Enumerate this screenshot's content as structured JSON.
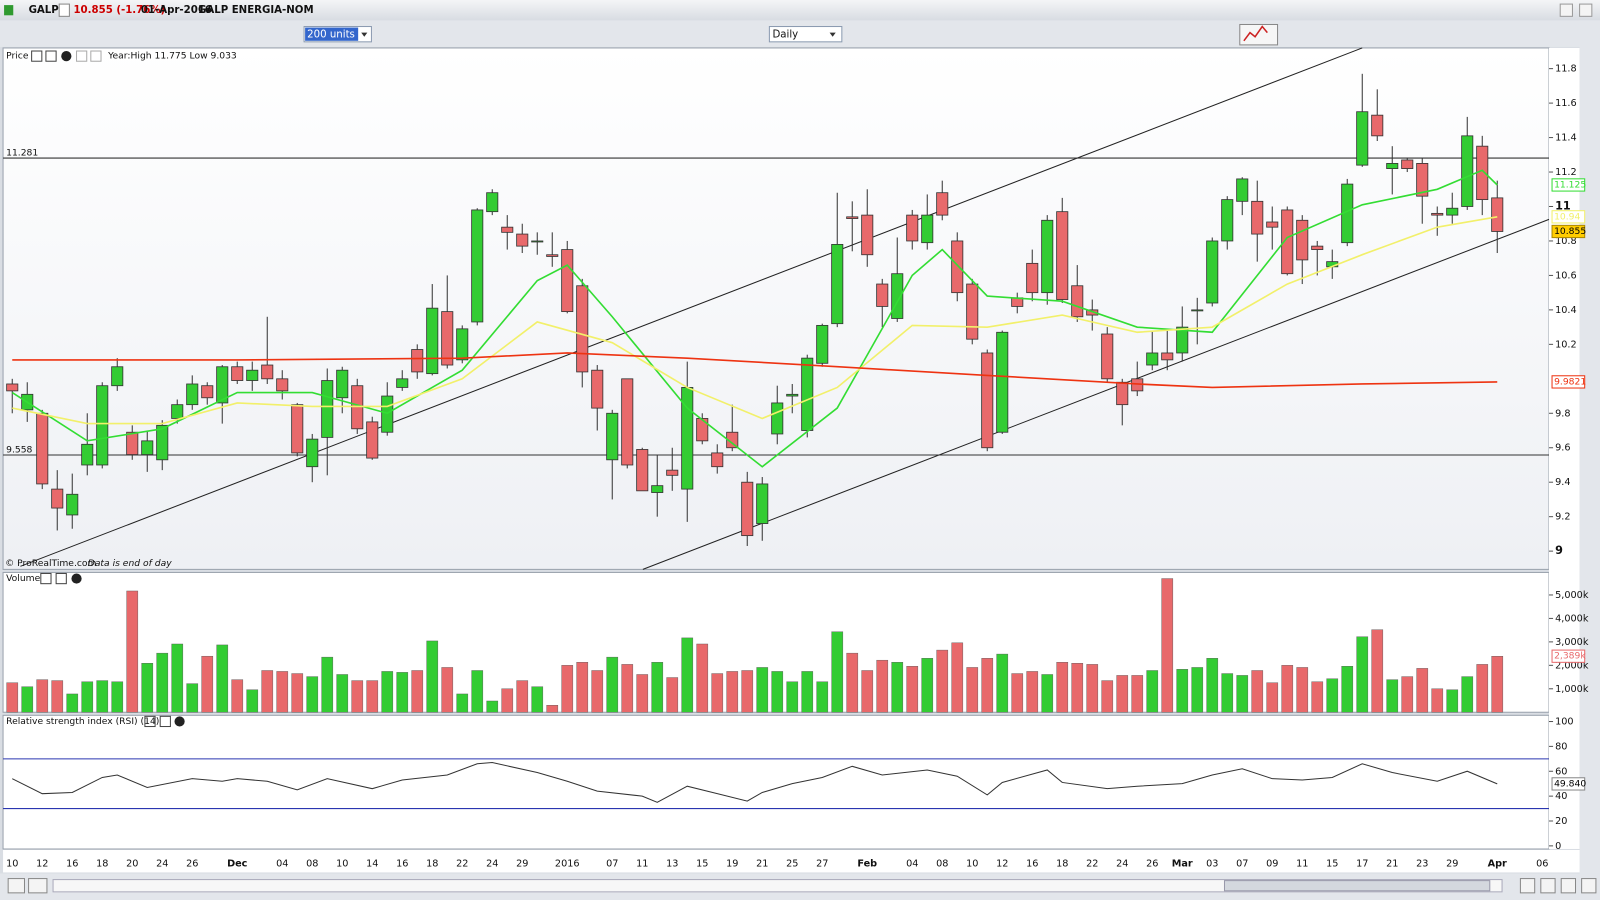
{
  "header": {
    "symbol": "GALP",
    "quote": "10.855 (-1.76%)",
    "date": "01-Apr-2016",
    "name": "GALP ENERGIA-NOM"
  },
  "toolbar": {
    "units": "200 units",
    "period": "Daily"
  },
  "chart_data": [
    {
      "type": "candlestick",
      "title": "Price",
      "subtitle": "Year:High 11.775 Low 9.033",
      "source": "© ProRealTime.com",
      "note": "Data is end of day",
      "categories": [
        "10",
        null,
        "12",
        null,
        "16",
        null,
        "18",
        null,
        "20",
        null,
        "24",
        null,
        "26",
        null,
        null,
        "Dec",
        null,
        null,
        "04",
        null,
        "08",
        null,
        "10",
        null,
        "14",
        null,
        "16",
        null,
        "18",
        null,
        "22",
        null,
        "24",
        null,
        "29",
        null,
        null,
        "2016",
        null,
        null,
        "07",
        null,
        "11",
        null,
        "13",
        null,
        "15",
        null,
        "19",
        null,
        "21",
        null,
        "25",
        null,
        "27",
        null,
        null,
        "Feb",
        null,
        null,
        "04",
        null,
        "08",
        null,
        "10",
        null,
        "12",
        null,
        "16",
        null,
        "18",
        null,
        "22",
        null,
        "24",
        null,
        "26",
        null,
        "Mar",
        null,
        "03",
        null,
        "07",
        null,
        "09",
        null,
        "11",
        null,
        "15",
        null,
        "17",
        null,
        "21",
        null,
        "23",
        null,
        "29",
        null,
        null,
        "Apr",
        null,
        null,
        "06"
      ],
      "open": [
        9.97,
        9.82,
        9.8,
        9.36,
        9.21,
        9.5,
        9.5,
        9.96,
        9.69,
        9.56,
        9.53,
        9.77,
        9.85,
        9.96,
        9.86,
        10.07,
        9.99,
        10.08,
        10.0,
        9.85,
        9.49,
        9.66,
        9.89,
        9.96,
        9.75,
        9.69,
        9.95,
        10.17,
        10.03,
        10.39,
        10.11,
        10.33,
        10.97,
        10.88,
        10.84,
        10.8,
        10.72,
        10.75,
        10.54,
        10.05,
        9.53,
        10.0,
        9.59,
        9.34,
        9.47,
        9.36,
        9.77,
        9.57,
        9.69,
        9.4,
        9.16,
        9.68,
        9.9,
        9.7,
        10.09,
        10.32,
        10.94,
        10.95,
        10.55,
        10.35,
        10.95,
        10.79,
        11.08,
        10.8,
        10.55,
        10.15,
        9.69,
        10.47,
        10.67,
        10.5,
        10.97,
        10.54,
        10.4,
        10.26,
        9.98,
        10.0,
        10.08,
        10.15,
        10.15,
        10.4,
        10.44,
        10.8,
        11.03,
        11.03,
        10.91,
        10.98,
        10.92,
        10.77,
        10.65,
        10.79,
        11.24,
        11.53,
        11.22,
        11.27,
        11.25,
        10.96,
        10.95,
        11.0,
        11.35,
        11.05,
        null,
        null,
        null
      ],
      "high": [
        10.0,
        9.98,
        9.82,
        9.47,
        9.45,
        9.8,
        9.98,
        10.12,
        9.73,
        9.7,
        9.76,
        9.88,
        10.02,
        9.98,
        10.08,
        10.1,
        10.1,
        10.36,
        10.05,
        9.86,
        9.68,
        10.06,
        10.07,
        10.0,
        9.78,
        9.98,
        10.05,
        10.2,
        10.55,
        10.6,
        10.31,
        10.99,
        11.1,
        10.95,
        10.9,
        10.85,
        10.85,
        10.8,
        10.58,
        10.08,
        9.82,
        10.0,
        9.6,
        9.56,
        9.6,
        10.1,
        9.8,
        9.62,
        9.85,
        9.46,
        9.43,
        9.96,
        9.97,
        10.14,
        10.32,
        11.08,
        11.03,
        11.1,
        10.58,
        10.82,
        10.98,
        11.07,
        11.15,
        10.85,
        10.58,
        10.17,
        10.28,
        10.5,
        10.75,
        10.95,
        11.05,
        10.66,
        10.46,
        10.3,
        10.0,
        10.1,
        10.28,
        10.28,
        10.42,
        10.47,
        10.82,
        11.06,
        11.17,
        11.15,
        11.0,
        11.0,
        10.95,
        10.8,
        10.75,
        11.16,
        11.77,
        11.68,
        11.35,
        11.28,
        11.28,
        11.0,
        11.08,
        11.52,
        11.41,
        11.15,
        null,
        null,
        null
      ],
      "low": [
        9.8,
        9.75,
        9.36,
        9.12,
        9.13,
        9.44,
        9.48,
        9.93,
        9.53,
        9.46,
        9.47,
        9.74,
        9.82,
        9.85,
        9.74,
        9.97,
        9.93,
        9.97,
        9.88,
        9.55,
        9.4,
        9.44,
        9.8,
        9.68,
        9.53,
        9.67,
        9.93,
        10.0,
        10.02,
        10.06,
        10.09,
        10.31,
        10.95,
        10.75,
        10.73,
        10.72,
        10.65,
        10.38,
        9.95,
        9.7,
        9.3,
        9.48,
        9.35,
        9.2,
        9.35,
        9.17,
        9.62,
        9.45,
        9.58,
        9.03,
        9.06,
        9.62,
        9.8,
        9.66,
        10.07,
        10.3,
        10.74,
        10.65,
        10.3,
        10.33,
        10.75,
        10.75,
        10.92,
        10.45,
        10.2,
        9.58,
        9.68,
        10.38,
        10.45,
        10.43,
        10.44,
        10.33,
        10.28,
        9.98,
        9.73,
        9.9,
        10.05,
        10.05,
        10.1,
        10.2,
        10.42,
        10.75,
        10.95,
        10.68,
        10.75,
        10.6,
        10.55,
        10.6,
        10.58,
        10.77,
        11.23,
        11.38,
        11.07,
        11.2,
        10.9,
        10.83,
        10.9,
        10.98,
        10.95,
        10.73,
        null,
        null,
        null
      ],
      "close": [
        9.93,
        9.91,
        9.39,
        9.25,
        9.33,
        9.62,
        9.96,
        10.07,
        9.56,
        9.64,
        9.73,
        9.85,
        9.97,
        9.89,
        10.07,
        9.99,
        10.05,
        10.0,
        9.93,
        9.57,
        9.65,
        9.99,
        10.05,
        9.71,
        9.54,
        9.9,
        10.0,
        10.04,
        10.41,
        10.08,
        10.29,
        10.98,
        11.08,
        10.85,
        10.77,
        10.8,
        10.71,
        10.39,
        10.04,
        9.83,
        9.8,
        9.5,
        9.35,
        9.38,
        9.44,
        9.95,
        9.64,
        9.49,
        9.6,
        9.09,
        9.39,
        9.86,
        9.91,
        10.12,
        10.31,
        10.78,
        10.93,
        10.72,
        10.42,
        10.61,
        10.8,
        10.95,
        10.95,
        10.5,
        10.23,
        9.6,
        10.27,
        10.42,
        10.5,
        10.92,
        10.46,
        10.36,
        10.37,
        10.0,
        9.85,
        9.93,
        10.15,
        10.11,
        10.3,
        10.4,
        10.8,
        11.04,
        11.16,
        10.84,
        10.88,
        10.61,
        10.69,
        10.75,
        10.68,
        11.13,
        11.55,
        11.41,
        11.25,
        11.22,
        11.06,
        10.95,
        10.99,
        11.41,
        11.04,
        10.855,
        null,
        null,
        null
      ],
      "up_color": "#33cc33",
      "down_color": "#e8696b",
      "series": [
        {
          "color": "#33dd33",
          "x": [
            0,
            5,
            10,
            15,
            20,
            25,
            30,
            35,
            37,
            40,
            45,
            50,
            55,
            60,
            62,
            65,
            70,
            75,
            80,
            85,
            90,
            95,
            98,
            99
          ],
          "values": [
            9.92,
            9.64,
            9.71,
            9.92,
            9.92,
            9.8,
            10.05,
            10.57,
            10.66,
            10.36,
            9.83,
            9.49,
            9.83,
            10.6,
            10.75,
            10.48,
            10.45,
            10.3,
            10.27,
            10.82,
            11.01,
            11.1,
            11.21,
            11.125
          ]
        },
        {
          "color": "#f2f06a",
          "x": [
            0,
            5,
            10,
            15,
            20,
            25,
            30,
            35,
            40,
            45,
            50,
            55,
            60,
            65,
            70,
            75,
            80,
            85,
            90,
            95,
            99
          ],
          "values": [
            9.83,
            9.74,
            9.74,
            9.86,
            9.84,
            9.84,
            10.0,
            10.33,
            10.21,
            9.95,
            9.77,
            9.95,
            10.31,
            10.3,
            10.37,
            10.27,
            10.3,
            10.55,
            10.72,
            10.88,
            10.94
          ]
        },
        {
          "color": "#ee3311",
          "x": [
            0,
            15,
            30,
            37,
            45,
            55,
            65,
            75,
            80,
            90,
            99
          ],
          "values": [
            10.11,
            10.11,
            10.12,
            10.15,
            10.12,
            10.07,
            10.02,
            9.97,
            9.95,
            9.97,
            9.9821
          ]
        }
      ],
      "levels": [
        11.281,
        9.558
      ],
      "close_marker_color": "#ffcc00",
      "ylim": [
        8.9,
        11.92
      ],
      "yticks": [
        9,
        9.2,
        9.4,
        9.6,
        9.8,
        10.2,
        10.4,
        10.6,
        10.8,
        11,
        11.2,
        11.4,
        11.6,
        11.8
      ],
      "grid": false
    },
    {
      "type": "bar",
      "title": "Volume",
      "values": [
        1260000,
        1090000,
        1390000,
        1350000,
        780000,
        1300000,
        1350000,
        1300000,
        5170000,
        2090000,
        2520000,
        2910000,
        1220000,
        2390000,
        2870000,
        1390000,
        960000,
        1780000,
        1740000,
        1650000,
        1520000,
        2350000,
        1610000,
        1350000,
        1350000,
        1740000,
        1700000,
        1780000,
        3040000,
        1910000,
        780000,
        1780000,
        480000,
        1000000,
        1350000,
        1090000,
        300000,
        2000000,
        2130000,
        1780000,
        2350000,
        2040000,
        1610000,
        2130000,
        1480000,
        3170000,
        2910000,
        1650000,
        1740000,
        1780000,
        1910000,
        1740000,
        1300000,
        1740000,
        1300000,
        3430000,
        2520000,
        1780000,
        2220000,
        2130000,
        1960000,
        2300000,
        2650000,
        2960000,
        1910000,
        2300000,
        2480000,
        1650000,
        1740000,
        1610000,
        2130000,
        2090000,
        2040000,
        1350000,
        1570000,
        1570000,
        1780000,
        5700000,
        1830000,
        1910000,
        2300000,
        1650000,
        1570000,
        1780000,
        1260000,
        2000000,
        1910000,
        1300000,
        1430000,
        1960000,
        3220000,
        3520000,
        1390000,
        1520000,
        1870000,
        1000000,
        960000,
        1520000,
        2040000,
        2389000,
        null,
        null,
        null
      ],
      "value_labels": [
        null,
        null,
        null,
        null,
        null,
        null,
        null,
        null,
        null,
        null,
        null,
        null,
        null,
        null,
        null,
        null,
        null,
        null,
        null,
        null,
        null,
        null,
        null,
        null,
        null,
        null,
        null,
        null,
        null,
        null,
        null,
        null,
        null,
        null,
        null,
        null,
        null,
        null,
        null,
        null,
        null,
        null,
        null,
        null,
        null,
        null,
        null,
        null,
        null,
        null,
        null,
        null,
        null,
        null,
        null,
        null,
        null,
        null,
        null,
        null,
        null,
        null,
        null,
        null,
        null,
        null,
        null,
        null,
        null,
        null,
        null,
        null,
        null,
        null,
        null,
        null,
        null,
        null,
        null,
        null,
        null,
        null,
        null,
        null,
        null,
        null,
        null,
        null,
        null,
        null,
        null,
        null,
        null,
        null,
        null,
        null,
        null,
        null,
        null,
        "2,389k",
        null,
        null,
        null
      ],
      "up_color": "#33cc33",
      "down_color": "#e8696b",
      "ylim": [
        0,
        5960000
      ],
      "yticks": [
        {
          "value": 1000000,
          "label": "1,000k"
        },
        {
          "value": 2000000,
          "label": "2,000k"
        },
        {
          "value": 3000000,
          "label": "3,000k"
        },
        {
          "value": 4000000,
          "label": "4,000k"
        },
        {
          "value": 5000000,
          "label": "5,000k"
        }
      ]
    },
    {
      "type": "line",
      "title": "Relative strength index (RSI) (14)",
      "color": "#333333",
      "x": [
        0,
        2,
        4,
        6,
        7,
        9,
        12,
        14,
        15,
        17,
        19,
        21,
        24,
        26,
        29,
        31,
        32,
        35,
        37,
        39,
        42,
        43,
        45,
        47,
        49,
        50,
        52,
        54,
        56,
        58,
        61,
        63,
        65,
        66,
        69,
        70,
        73,
        75,
        78,
        80,
        82,
        84,
        86,
        88,
        90,
        92,
        95,
        97,
        99
      ],
      "values": [
        54,
        42,
        43,
        55,
        57,
        47,
        54,
        52,
        54,
        52,
        45,
        54,
        46,
        53,
        57,
        66,
        67,
        59,
        52,
        44,
        40,
        35,
        48,
        42,
        36,
        43,
        50,
        55,
        64,
        57,
        61,
        56,
        41,
        51,
        61,
        51,
        46,
        48,
        50,
        57,
        62,
        54,
        53,
        55,
        66,
        59,
        52,
        60,
        49.84
      ],
      "value_labels": [
        null,
        null,
        null,
        null,
        null,
        null,
        null,
        null,
        null,
        null,
        null,
        null,
        null,
        null,
        null,
        null,
        null,
        null,
        null,
        null,
        null,
        null,
        null,
        null,
        null,
        null,
        null,
        null,
        null,
        null,
        null,
        null,
        null,
        null,
        null,
        null,
        null,
        null,
        null,
        null,
        null,
        null,
        null,
        null,
        null,
        null,
        null,
        null,
        "49.840"
      ],
      "bands": [
        30,
        70
      ],
      "band_color": "#2a36b0",
      "ylim": [
        -2.5,
        105
      ],
      "yticks": [
        0,
        20,
        40,
        60,
        80,
        100
      ]
    }
  ]
}
